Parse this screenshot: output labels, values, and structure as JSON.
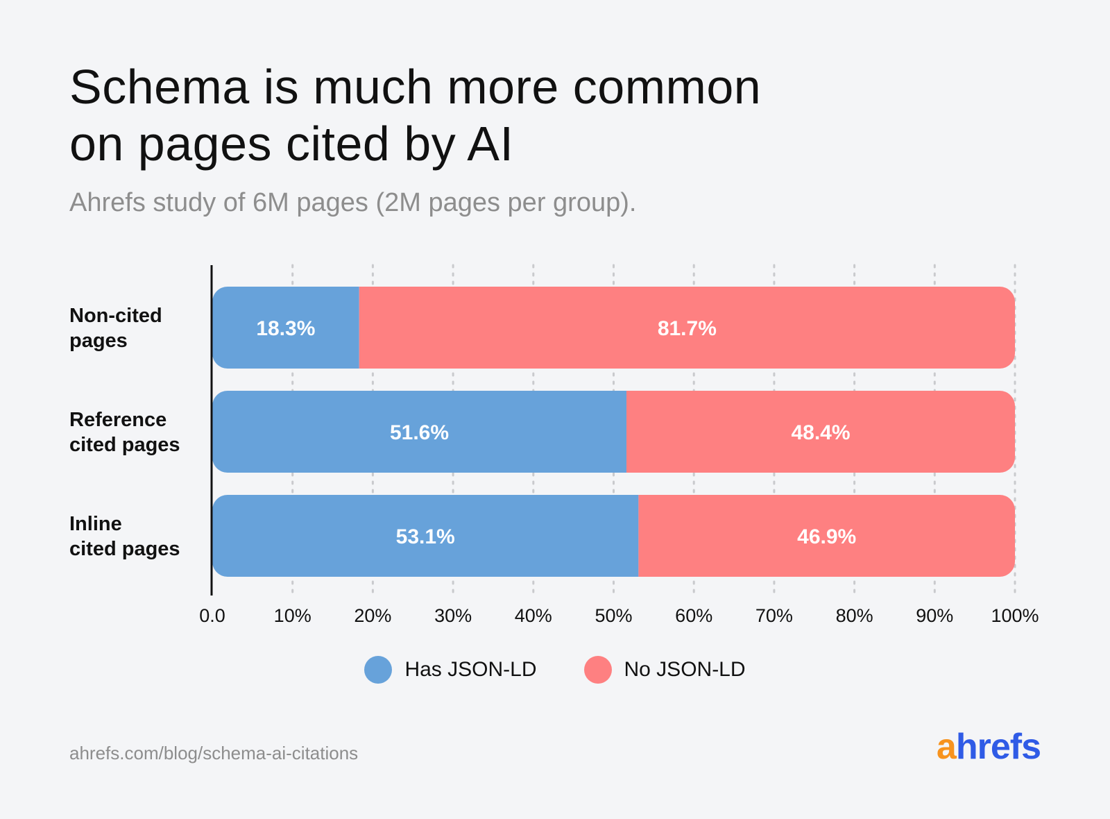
{
  "title_line1": "Schema is much more common",
  "title_line2": "on pages cited by AI",
  "subtitle": "Ahrefs study of 6M pages (2M pages per group).",
  "source": "ahrefs.com/blog/schema-ai-citations",
  "logo": {
    "first": "a",
    "rest": "hrefs"
  },
  "colors": {
    "has": "#67a2da",
    "no": "#fe8081",
    "background": "#f4f5f7"
  },
  "legend": [
    {
      "label": "Has JSON-LD",
      "color": "#67a2da"
    },
    {
      "label": "No JSON-LD",
      "color": "#fe8081"
    }
  ],
  "chart_data": {
    "type": "bar",
    "orientation": "horizontal",
    "stacked": true,
    "categories": [
      [
        "Non-cited",
        "pages"
      ],
      [
        "Reference",
        "cited pages"
      ],
      [
        "Inline",
        "cited pages"
      ]
    ],
    "series": [
      {
        "name": "Has JSON-LD",
        "values": [
          18.3,
          51.6,
          53.1
        ],
        "labels": [
          "18.3%",
          "51.6%",
          "53.1%"
        ],
        "color": "#67a2da"
      },
      {
        "name": "No JSON-LD",
        "values": [
          81.7,
          48.4,
          46.9
        ],
        "labels": [
          "81.7%",
          "48.4%",
          "46.9%"
        ],
        "color": "#fe8081"
      }
    ],
    "xlim": [
      0,
      100
    ],
    "xticks": [
      0,
      10,
      20,
      30,
      40,
      50,
      60,
      70,
      80,
      90,
      100
    ],
    "xtick_labels": [
      "0.0",
      "10%",
      "20%",
      "30%",
      "40%",
      "50%",
      "60%",
      "70%",
      "80%",
      "90%",
      "100%"
    ],
    "grid": "vertical-dotted",
    "legend_position": "bottom-center"
  }
}
